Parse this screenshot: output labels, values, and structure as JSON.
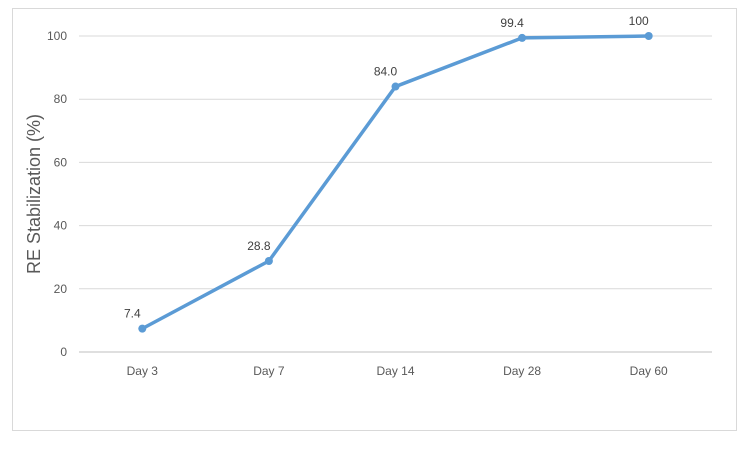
{
  "chart_data": {
    "type": "line",
    "title": "",
    "xlabel": "",
    "ylabel": "RE Stabilization (%)",
    "categories": [
      "Day 3",
      "Day 7",
      "Day 14",
      "Day 28",
      "Day 60"
    ],
    "series": [
      {
        "values": [
          7.4,
          28.8,
          84.0,
          99.4,
          100
        ],
        "data_labels": [
          "7.4",
          "28.8",
          "84.0",
          "99.4",
          "100"
        ],
        "color": "#5b9bd5"
      }
    ],
    "ylim": [
      0,
      100
    ],
    "yticks": [
      0,
      20,
      40,
      60,
      80,
      100
    ],
    "grid": true,
    "gridColor": "#d9d9d9",
    "legend": "none"
  }
}
